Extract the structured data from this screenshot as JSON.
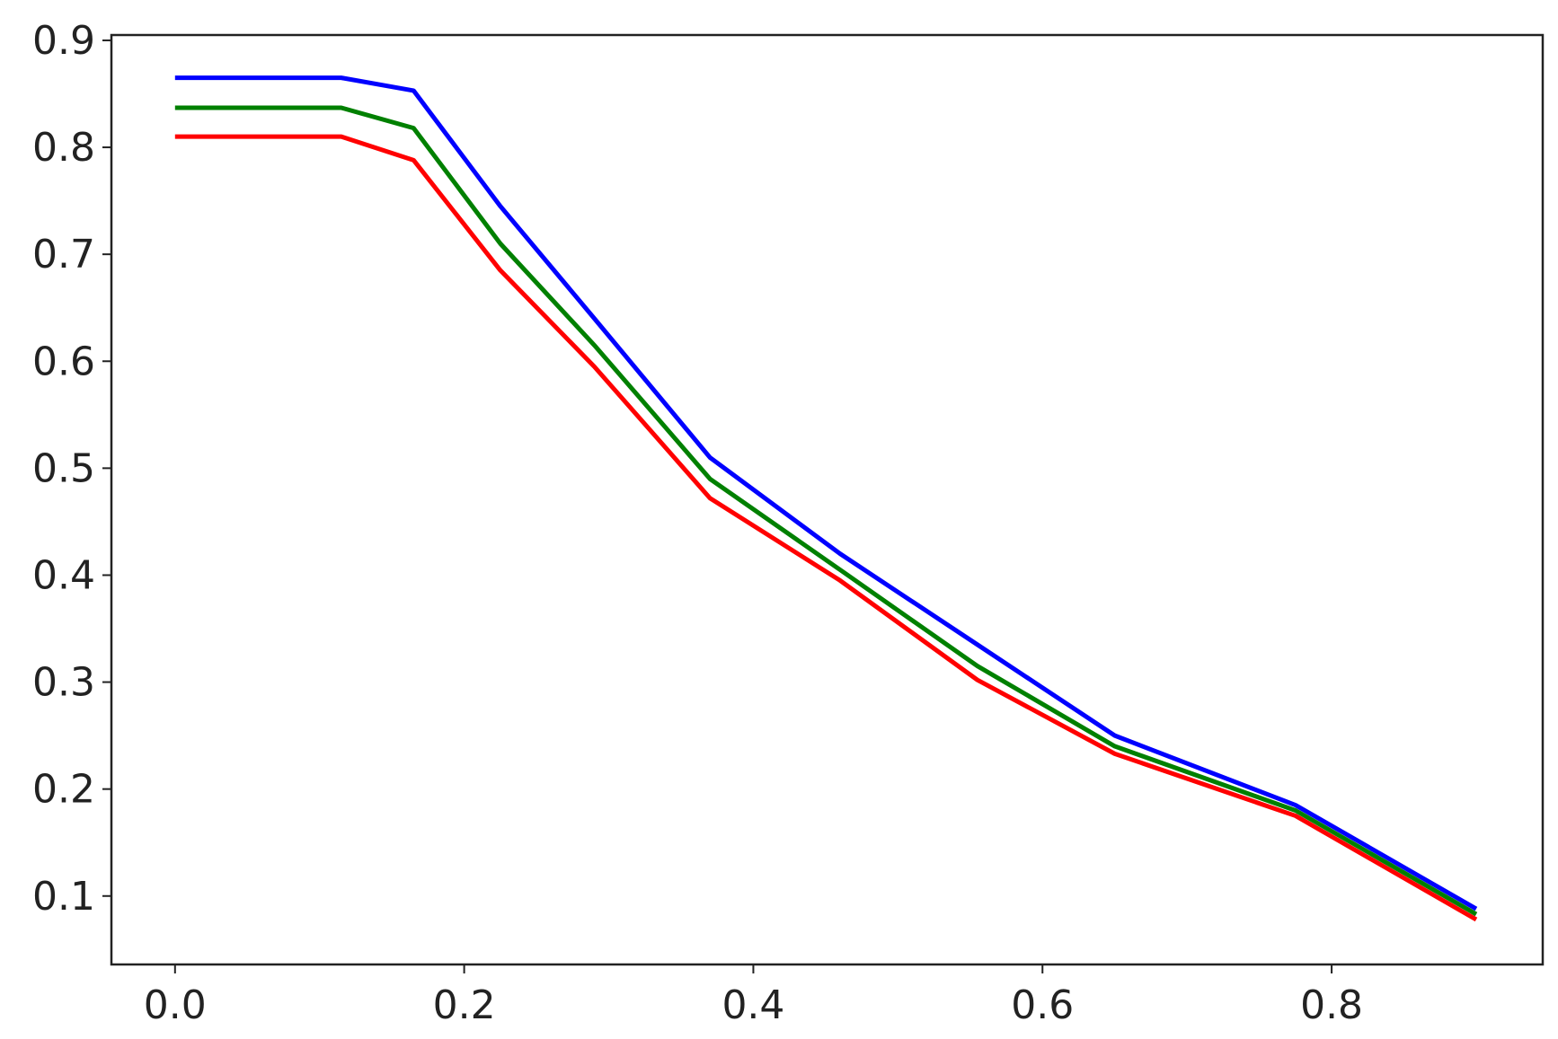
{
  "chart_data": {
    "type": "line",
    "x": [
      0,
      0.115,
      0.165,
      0.225,
      0.29,
      0.37,
      0.46,
      0.555,
      0.65,
      0.775,
      0.9
    ],
    "series": [
      {
        "color": "#0000ff",
        "values": [
          0.865,
          0.865,
          0.853,
          0.745,
          0.64,
          0.51,
          0.42,
          0.335,
          0.25,
          0.185,
          0.088
        ]
      },
      {
        "color": "#008000",
        "values": [
          0.837,
          0.837,
          0.818,
          0.71,
          0.615,
          0.49,
          0.405,
          0.315,
          0.24,
          0.18,
          0.083
        ]
      },
      {
        "color": "#ff0000",
        "values": [
          0.81,
          0.81,
          0.788,
          0.685,
          0.595,
          0.472,
          0.395,
          0.302,
          0.233,
          0.175,
          0.078
        ]
      }
    ],
    "xlim": [
      -0.044,
      0.946
    ],
    "xticks": [
      {
        "value": 0,
        "label": "0.0"
      },
      0.2,
      0.4,
      0.6,
      0.8
    ],
    "ylim": [
      0.036,
      0.905
    ],
    "yticks": [
      0.1,
      0.2,
      0.3,
      0.4,
      0.5,
      0.6,
      0.7,
      0.8,
      0.9
    ],
    "grid": false
  }
}
